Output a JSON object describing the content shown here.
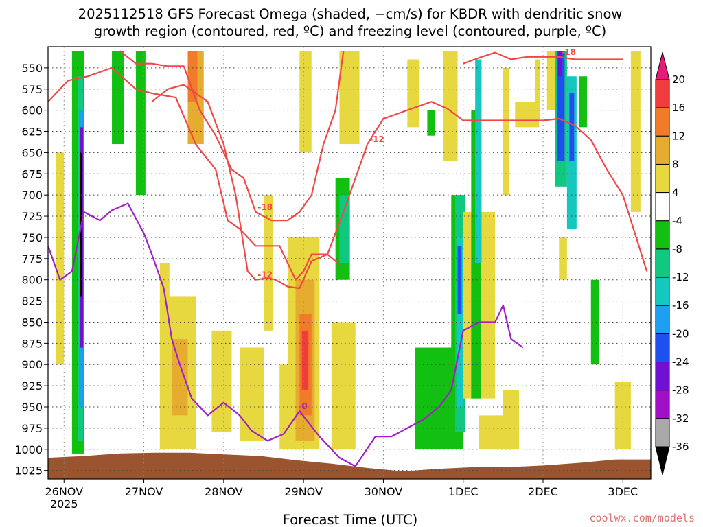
{
  "chart_data": {
    "type": "heatmap",
    "title_line1": "2025112518 GFS Forecast Omega (shaded, −cm/s) for KBDR with dendritic snow",
    "title_line2": "growth region (contoured, red, ºC) and freezing level (contoured, purple, ºC)",
    "xlabel": "Forecast Time (UTC)",
    "x_ticks": [
      "26NOV",
      "27NOV",
      "28NOV",
      "29NOV",
      "30NOV",
      "1DEC",
      "2DEC",
      "3DEC"
    ],
    "x_tick_year": "2025",
    "y_ticks": [
      550,
      575,
      600,
      625,
      650,
      675,
      700,
      725,
      750,
      775,
      800,
      825,
      850,
      875,
      900,
      925,
      950,
      975,
      1000,
      1025
    ],
    "ylim": [
      525,
      1035
    ],
    "xlim_days": [
      -0.2,
      7.35
    ],
    "grid": true,
    "colorbar": {
      "labels": [
        "20",
        "16",
        "12",
        "8",
        "4",
        "-4",
        "-8",
        "-12",
        "-16",
        "-20",
        "-24",
        "-28",
        "-32",
        "-36"
      ],
      "colors": [
        "#e8197a",
        "#f03c3c",
        "#f07b28",
        "#e6ac30",
        "#e8d840",
        "#ffffff",
        "#12c012",
        "#10c880",
        "#14c8c0",
        "#1ea0f0",
        "#1e50f0",
        "#7010d0",
        "#a010c8",
        "#a8a8a8",
        "#000000"
      ]
    },
    "shading": [
      {
        "x": 0.1,
        "w": 0.15,
        "p0": 530,
        "p1": 1005,
        "c": "#12c012"
      },
      {
        "x": 0.17,
        "w": 0.07,
        "p0": 560,
        "p1": 990,
        "c": "#10c880"
      },
      {
        "x": 0.19,
        "w": 0.05,
        "p0": 600,
        "p1": 950,
        "c": "#1ea0f0"
      },
      {
        "x": 0.2,
        "w": 0.04,
        "p0": 620,
        "p1": 880,
        "c": "#7010d0"
      },
      {
        "x": 0.2,
        "w": 0.03,
        "p0": 650,
        "p1": 820,
        "c": "#000000"
      },
      {
        "x": -0.1,
        "w": 0.1,
        "p0": 650,
        "p1": 900,
        "c": "#e8d840"
      },
      {
        "x": 0.6,
        "w": 0.15,
        "p0": 530,
        "p1": 640,
        "c": "#12c012"
      },
      {
        "x": 0.9,
        "w": 0.12,
        "p0": 530,
        "p1": 700,
        "c": "#12c012"
      },
      {
        "x": 1.2,
        "w": 0.12,
        "p0": 780,
        "p1": 1000,
        "c": "#e8d840"
      },
      {
        "x": 1.3,
        "w": 0.35,
        "p0": 820,
        "p1": 1000,
        "c": "#e8d840"
      },
      {
        "x": 1.35,
        "w": 0.2,
        "p0": 870,
        "p1": 960,
        "c": "#e6ac30"
      },
      {
        "x": 1.55,
        "w": 0.2,
        "p0": 530,
        "p1": 640,
        "c": "#e6ac30"
      },
      {
        "x": 1.55,
        "w": 0.12,
        "p0": 530,
        "p1": 590,
        "c": "#f07b28"
      },
      {
        "x": 1.85,
        "w": 0.25,
        "p0": 860,
        "p1": 980,
        "c": "#e8d840"
      },
      {
        "x": 2.2,
        "w": 0.3,
        "p0": 880,
        "p1": 990,
        "c": "#e8d840"
      },
      {
        "x": 2.5,
        "w": 0.12,
        "p0": 700,
        "p1": 860,
        "c": "#e8d840"
      },
      {
        "x": 2.7,
        "w": 0.15,
        "p0": 900,
        "p1": 1000,
        "c": "#e8d840"
      },
      {
        "x": 2.8,
        "w": 0.4,
        "p0": 750,
        "p1": 1000,
        "c": "#e8d840"
      },
      {
        "x": 2.9,
        "w": 0.24,
        "p0": 800,
        "p1": 990,
        "c": "#e6ac30"
      },
      {
        "x": 2.95,
        "w": 0.15,
        "p0": 840,
        "p1": 960,
        "c": "#f07b28"
      },
      {
        "x": 2.98,
        "w": 0.08,
        "p0": 860,
        "p1": 930,
        "c": "#f03c3c"
      },
      {
        "x": 2.95,
        "w": 0.15,
        "p0": 530,
        "p1": 650,
        "c": "#e8d840"
      },
      {
        "x": 3.4,
        "w": 0.18,
        "p0": 680,
        "p1": 800,
        "c": "#12c012"
      },
      {
        "x": 3.45,
        "w": 0.12,
        "p0": 700,
        "p1": 780,
        "c": "#10c880"
      },
      {
        "x": 3.35,
        "w": 0.3,
        "p0": 850,
        "p1": 1000,
        "c": "#e8d840"
      },
      {
        "x": 3.5,
        "w": 0.12,
        "p0": 530,
        "p1": 600,
        "c": "#f03c3c"
      },
      {
        "x": 3.45,
        "w": 0.25,
        "p0": 530,
        "p1": 640,
        "c": "#e8d840"
      },
      {
        "x": 4.3,
        "w": 0.15,
        "p0": 540,
        "p1": 620,
        "c": "#e8d840"
      },
      {
        "x": 4.4,
        "w": 0.5,
        "p0": 880,
        "p1": 1000,
        "c": "#12c012"
      },
      {
        "x": 4.55,
        "w": 0.1,
        "p0": 600,
        "p1": 630,
        "c": "#12c012"
      },
      {
        "x": 4.75,
        "w": 0.18,
        "p0": 530,
        "p1": 660,
        "c": "#e8d840"
      },
      {
        "x": 4.85,
        "w": 0.15,
        "p0": 700,
        "p1": 1000,
        "c": "#12c012"
      },
      {
        "x": 4.9,
        "w": 0.12,
        "p0": 700,
        "p1": 980,
        "c": "#10c880"
      },
      {
        "x": 4.92,
        "w": 0.08,
        "p0": 750,
        "p1": 950,
        "c": "#14c8c0"
      },
      {
        "x": 4.93,
        "w": 0.05,
        "p0": 760,
        "p1": 840,
        "c": "#1e50f0"
      },
      {
        "x": 5.0,
        "w": 0.4,
        "p0": 720,
        "p1": 940,
        "c": "#e8d840"
      },
      {
        "x": 5.1,
        "w": 0.12,
        "p0": 600,
        "p1": 940,
        "c": "#12c012"
      },
      {
        "x": 5.15,
        "w": 0.08,
        "p0": 540,
        "p1": 780,
        "c": "#14c8c0"
      },
      {
        "x": 5.2,
        "w": 0.3,
        "p0": 960,
        "p1": 1000,
        "c": "#e8d840"
      },
      {
        "x": 5.5,
        "w": 0.2,
        "p0": 930,
        "p1": 1000,
        "c": "#e8d840"
      },
      {
        "x": 5.5,
        "w": 0.08,
        "p0": 550,
        "p1": 700,
        "c": "#e8d840"
      },
      {
        "x": 5.65,
        "w": 0.3,
        "p0": 590,
        "p1": 620,
        "c": "#e8d840"
      },
      {
        "x": 5.9,
        "w": 0.06,
        "p0": 540,
        "p1": 610,
        "c": "#e8d840"
      },
      {
        "x": 6.05,
        "w": 0.1,
        "p0": 530,
        "p1": 600,
        "c": "#e8d840"
      },
      {
        "x": 6.15,
        "w": 0.15,
        "p0": 530,
        "p1": 690,
        "c": "#10c880"
      },
      {
        "x": 6.18,
        "w": 0.09,
        "p0": 530,
        "p1": 660,
        "c": "#1e50f0"
      },
      {
        "x": 6.19,
        "w": 0.05,
        "p0": 530,
        "p1": 560,
        "c": "#7010d0"
      },
      {
        "x": 6.3,
        "w": 0.12,
        "p0": 560,
        "p1": 740,
        "c": "#14c8c0"
      },
      {
        "x": 6.33,
        "w": 0.06,
        "p0": 580,
        "p1": 660,
        "c": "#1e50f0"
      },
      {
        "x": 6.45,
        "w": 0.1,
        "p0": 560,
        "p1": 620,
        "c": "#12c012"
      },
      {
        "x": 6.2,
        "w": 0.1,
        "p0": 750,
        "p1": 800,
        "c": "#e8d840"
      },
      {
        "x": 6.6,
        "w": 0.1,
        "p0": 800,
        "p1": 900,
        "c": "#12c012"
      },
      {
        "x": 6.9,
        "w": 0.2,
        "p0": 920,
        "p1": 1000,
        "c": "#e8d840"
      },
      {
        "x": 7.1,
        "w": 0.12,
        "p0": 530,
        "p1": 720,
        "c": "#e8d840"
      }
    ],
    "ground_p": [
      1010,
      1008,
      1005,
      1004,
      1004,
      1006,
      1008,
      1013,
      1017,
      1022,
      1026,
      1023,
      1021,
      1021,
      1019,
      1016,
      1012,
      1012
    ],
    "series": [
      {
        "label": "-12",
        "color": "#f04848",
        "x": [
          -0.2,
          0.05,
          0.3,
          0.6,
          0.9,
          1.1,
          1.4,
          1.65,
          1.9,
          2.05,
          2.2,
          2.4,
          2.7,
          2.9,
          3.0,
          3.1,
          3.3,
          3.5,
          3.8,
          4.0,
          4.3,
          4.6,
          4.8,
          5.0,
          5.2,
          5.5,
          5.8,
          6.0,
          6.2,
          6.4,
          6.6,
          6.8,
          7.0,
          7.3
        ],
        "p": [
          590,
          565,
          560,
          550,
          575,
          580,
          585,
          640,
          670,
          730,
          740,
          760,
          760,
          800,
          790,
          770,
          770,
          720,
          640,
          610,
          600,
          590,
          598,
          612,
          612,
          612,
          612,
          612,
          610,
          618,
          635,
          670,
          700,
          790
        ]
      },
      {
        "label": "-12",
        "color": "#f04848",
        "x": [
          1.1,
          1.3,
          1.5,
          1.65,
          1.8,
          2.0,
          2.15,
          2.3,
          2.4,
          2.55,
          2.65,
          2.8,
          2.95,
          3.1,
          3.3,
          3.45
        ],
        "p": [
          590,
          575,
          570,
          580,
          590,
          640,
          700,
          790,
          800,
          798,
          800,
          808,
          810,
          778,
          770,
          782
        ]
      },
      {
        "label": "-18",
        "color": "#f04848",
        "x": [
          0.7,
          0.9,
          1.1,
          1.3,
          1.5,
          1.7,
          1.9,
          2.1,
          2.25,
          2.4,
          2.6,
          2.8,
          2.95,
          3.1,
          3.25,
          3.4,
          3.5
        ],
        "p": [
          530,
          545,
          545,
          548,
          548,
          600,
          630,
          670,
          680,
          720,
          730,
          730,
          720,
          700,
          640,
          600,
          530
        ]
      },
      {
        "label": "-18",
        "color": "#f04848",
        "x": [
          5.0,
          5.2,
          5.4,
          5.6,
          5.8,
          6.0,
          6.2,
          6.4,
          6.6,
          6.8,
          7.0
        ],
        "p": [
          545,
          538,
          532,
          540,
          537,
          537,
          537,
          540,
          540,
          540,
          540
        ]
      },
      {
        "label": "0",
        "color": "#a020c8",
        "x": [
          -0.2,
          -0.05,
          0.1,
          0.25,
          0.45,
          0.6,
          0.8,
          1.0,
          1.1,
          1.25,
          1.35,
          1.45,
          1.6,
          1.8,
          2.0,
          2.2,
          2.35,
          2.55,
          2.75,
          2.95,
          3.2,
          3.45,
          3.65,
          3.9,
          4.1,
          4.3,
          4.5,
          4.7,
          4.85,
          5.0,
          5.2,
          5.4,
          5.5,
          5.6,
          5.75
        ],
        "p": [
          760,
          800,
          790,
          720,
          730,
          718,
          710,
          745,
          770,
          810,
          870,
          900,
          940,
          960,
          945,
          960,
          978,
          990,
          982,
          955,
          985,
          1010,
          1020,
          985,
          985,
          975,
          965,
          950,
          930,
          860,
          850,
          850,
          830,
          870,
          880
        ]
      }
    ]
  },
  "credit": "coolwx.com/models"
}
